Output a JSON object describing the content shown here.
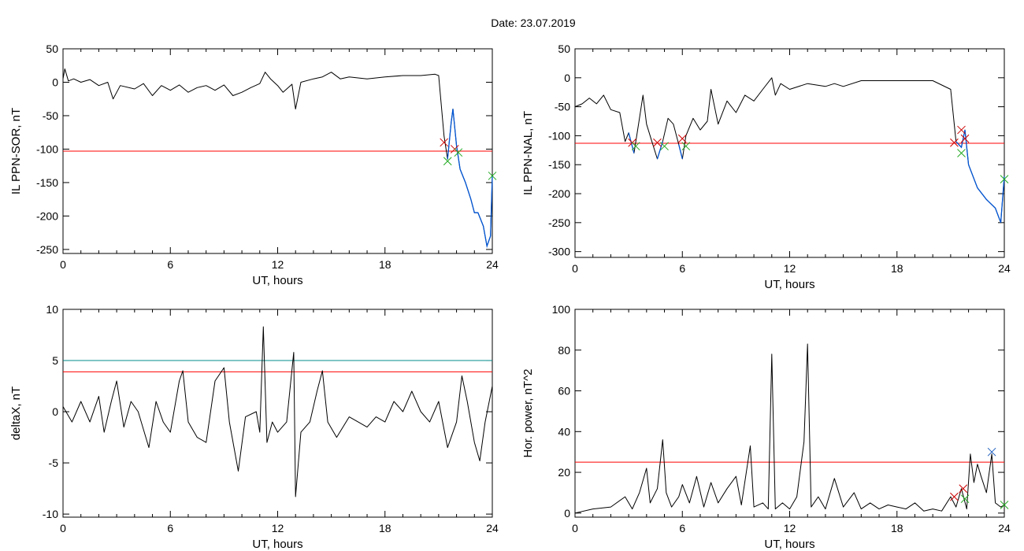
{
  "page_title": "Date:  23.07.2019",
  "colors": {
    "trace": "#000000",
    "threshold": "#ff0000",
    "threshold_upper": "#008b8b",
    "highlight": "#0055d4",
    "marker_cross": "#cc0000",
    "marker_green": "#22aa22",
    "marker_blue": "#1f5fbf"
  },
  "chart_data": [
    {
      "id": "ppn-sor",
      "type": "line",
      "title": "",
      "xlabel": "UT, hours",
      "ylabel": "IL PPN-SOR, nT",
      "xlim": [
        0,
        24
      ],
      "ylim": [
        -256,
        50
      ],
      "xticks": [
        0,
        6,
        12,
        18,
        24
      ],
      "yticks": [
        50,
        0,
        -50,
        -100,
        -150,
        -200,
        -250
      ],
      "threshold": -103,
      "points": [
        [
          0,
          5
        ],
        [
          0.1,
          20
        ],
        [
          0.3,
          2
        ],
        [
          0.6,
          5
        ],
        [
          1.0,
          0
        ],
        [
          1.5,
          4
        ],
        [
          2.0,
          -5
        ],
        [
          2.5,
          0
        ],
        [
          2.8,
          -25
        ],
        [
          3.2,
          -5
        ],
        [
          4.0,
          -10
        ],
        [
          4.5,
          -2
        ],
        [
          5.0,
          -20
        ],
        [
          5.5,
          -5
        ],
        [
          6.0,
          -12
        ],
        [
          6.5,
          -4
        ],
        [
          7.0,
          -15
        ],
        [
          7.5,
          -8
        ],
        [
          8.0,
          -5
        ],
        [
          8.5,
          -12
        ],
        [
          9.0,
          -4
        ],
        [
          9.5,
          -20
        ],
        [
          10.0,
          -15
        ],
        [
          10.5,
          -8
        ],
        [
          11.0,
          -2
        ],
        [
          11.3,
          15
        ],
        [
          11.6,
          5
        ],
        [
          12.0,
          -5
        ],
        [
          12.3,
          -15
        ],
        [
          12.8,
          -3
        ],
        [
          13.0,
          -40
        ],
        [
          13.3,
          0
        ],
        [
          14.0,
          5
        ],
        [
          14.5,
          8
        ],
        [
          15.0,
          15
        ],
        [
          15.5,
          5
        ],
        [
          16.0,
          8
        ],
        [
          17.0,
          5
        ],
        [
          18.0,
          8
        ],
        [
          19.0,
          10
        ],
        [
          20.0,
          10
        ],
        [
          20.8,
          12
        ],
        [
          21.0,
          10
        ],
        [
          21.3,
          -80
        ],
        [
          21.5,
          -115
        ],
        [
          21.7,
          -60
        ],
        [
          21.8,
          -40
        ],
        [
          22.0,
          -95
        ],
        [
          22.2,
          -130
        ],
        [
          22.5,
          -150
        ],
        [
          22.8,
          -175
        ],
        [
          23.0,
          -195
        ],
        [
          23.2,
          -195
        ],
        [
          23.5,
          -215
        ],
        [
          23.7,
          -245
        ],
        [
          23.9,
          -230
        ],
        [
          24,
          -140
        ]
      ],
      "highlight_from": 21.4,
      "cross_markers": [
        [
          21.3,
          -90
        ],
        [
          21.9,
          -100
        ]
      ],
      "green_markers": [
        [
          21.5,
          -118
        ],
        [
          22.1,
          -105
        ],
        [
          24,
          -140
        ]
      ]
    },
    {
      "id": "ppn-nal",
      "type": "line",
      "title": "",
      "xlabel": "UT, hours",
      "ylabel": "IL PPN-NAL, nT",
      "xlim": [
        0,
        24
      ],
      "ylim": [
        -310,
        50
      ],
      "xticks": [
        0,
        6,
        12,
        18,
        24
      ],
      "yticks": [
        50,
        0,
        -50,
        -100,
        -150,
        -200,
        -250,
        -300
      ],
      "threshold": -113,
      "points": [
        [
          0,
          -50
        ],
        [
          0.4,
          -45
        ],
        [
          0.8,
          -35
        ],
        [
          1.2,
          -45
        ],
        [
          1.6,
          -30
        ],
        [
          2.0,
          -55
        ],
        [
          2.5,
          -60
        ],
        [
          2.8,
          -110
        ],
        [
          3.0,
          -95
        ],
        [
          3.3,
          -130
        ],
        [
          3.6,
          -70
        ],
        [
          3.8,
          -30
        ],
        [
          4.0,
          -80
        ],
        [
          4.3,
          -110
        ],
        [
          4.6,
          -140
        ],
        [
          4.9,
          -110
        ],
        [
          5.2,
          -70
        ],
        [
          5.5,
          -80
        ],
        [
          5.8,
          -115
        ],
        [
          6.0,
          -140
        ],
        [
          6.2,
          -100
        ],
        [
          6.6,
          -70
        ],
        [
          7.0,
          -90
        ],
        [
          7.4,
          -75
        ],
        [
          7.6,
          -20
        ],
        [
          8.0,
          -80
        ],
        [
          8.5,
          -40
        ],
        [
          9.0,
          -60
        ],
        [
          9.5,
          -30
        ],
        [
          10.0,
          -40
        ],
        [
          10.5,
          -20
        ],
        [
          11.0,
          0
        ],
        [
          11.2,
          -30
        ],
        [
          11.5,
          -10
        ],
        [
          12.0,
          -20
        ],
        [
          13.0,
          -10
        ],
        [
          14.0,
          -15
        ],
        [
          14.5,
          -10
        ],
        [
          15.0,
          -15
        ],
        [
          16.0,
          -5
        ],
        [
          17.0,
          -5
        ],
        [
          18.0,
          -5
        ],
        [
          19.0,
          -5
        ],
        [
          20.0,
          -5
        ],
        [
          21.0,
          -20
        ],
        [
          21.3,
          -110
        ],
        [
          21.6,
          -120
        ],
        [
          21.8,
          -90
        ],
        [
          22.0,
          -150
        ],
        [
          22.5,
          -190
        ],
        [
          23.0,
          -210
        ],
        [
          23.5,
          -225
        ],
        [
          23.8,
          -250
        ],
        [
          24,
          -170
        ]
      ],
      "highlight_segments": [
        [
          2.95,
          3.45
        ],
        [
          4.35,
          5.0
        ],
        [
          5.75,
          6.15
        ],
        [
          21.3,
          24
        ]
      ],
      "cross_markers": [
        [
          3.2,
          -112
        ],
        [
          4.6,
          -112
        ],
        [
          6.0,
          -105
        ],
        [
          21.2,
          -112
        ],
        [
          21.6,
          -90
        ],
        [
          21.8,
          -105
        ]
      ],
      "green_markers": [
        [
          3.4,
          -118
        ],
        [
          5.0,
          -118
        ],
        [
          6.2,
          -118
        ],
        [
          21.6,
          -130
        ],
        [
          24,
          -175
        ]
      ]
    },
    {
      "id": "deltax",
      "type": "line",
      "title": "",
      "xlabel": "UT, hours",
      "ylabel": "deltaX, nT",
      "xlim": [
        0,
        24
      ],
      "ylim": [
        -10.3,
        10
      ],
      "xticks": [
        0,
        6,
        12,
        18,
        24
      ],
      "yticks": [
        10,
        5,
        0,
        -5,
        -10
      ],
      "threshold": 3.9,
      "threshold_upper": 5.0,
      "points": [
        [
          0,
          0.5
        ],
        [
          0.5,
          -1
        ],
        [
          1.0,
          1
        ],
        [
          1.5,
          -1
        ],
        [
          2.0,
          1.5
        ],
        [
          2.3,
          -2
        ],
        [
          2.7,
          1
        ],
        [
          3.0,
          3
        ],
        [
          3.4,
          -1.5
        ],
        [
          3.8,
          1
        ],
        [
          4.2,
          0
        ],
        [
          4.8,
          -3.5
        ],
        [
          5.2,
          1
        ],
        [
          5.6,
          -1
        ],
        [
          6.0,
          -2
        ],
        [
          6.5,
          3
        ],
        [
          6.7,
          4
        ],
        [
          7.0,
          -1
        ],
        [
          7.5,
          -2.5
        ],
        [
          8.0,
          -3
        ],
        [
          8.5,
          3
        ],
        [
          9.0,
          4.3
        ],
        [
          9.3,
          -1
        ],
        [
          9.8,
          -5.8
        ],
        [
          10.2,
          -0.5
        ],
        [
          10.8,
          0
        ],
        [
          11.0,
          -2
        ],
        [
          11.2,
          8.3
        ],
        [
          11.4,
          -3
        ],
        [
          11.7,
          -1
        ],
        [
          12.0,
          -2
        ],
        [
          12.5,
          -1
        ],
        [
          12.9,
          5.8
        ],
        [
          13.0,
          -8.3
        ],
        [
          13.3,
          -2
        ],
        [
          13.8,
          -1
        ],
        [
          14.2,
          2
        ],
        [
          14.5,
          4
        ],
        [
          14.8,
          -1
        ],
        [
          15.3,
          -2.5
        ],
        [
          16.0,
          -0.5
        ],
        [
          16.5,
          -1
        ],
        [
          17.0,
          -1.5
        ],
        [
          17.5,
          -0.5
        ],
        [
          18.0,
          -1
        ],
        [
          18.5,
          1
        ],
        [
          19.0,
          0
        ],
        [
          19.5,
          2
        ],
        [
          20.0,
          0
        ],
        [
          20.5,
          -1
        ],
        [
          21.0,
          1
        ],
        [
          21.5,
          -3.5
        ],
        [
          22.0,
          -1
        ],
        [
          22.3,
          3.5
        ],
        [
          22.6,
          1
        ],
        [
          23.0,
          -3
        ],
        [
          23.3,
          -4.8
        ],
        [
          23.6,
          -1
        ],
        [
          24,
          2.5
        ]
      ]
    },
    {
      "id": "hor-power",
      "type": "line",
      "title": "",
      "xlabel": "UT, hours",
      "ylabel": "Hor. power, nT^2",
      "xlim": [
        0,
        24
      ],
      "ylim": [
        -2,
        100
      ],
      "xticks": [
        0,
        6,
        12,
        18,
        24
      ],
      "yticks": [
        100,
        80,
        60,
        40,
        20,
        0
      ],
      "threshold": 25,
      "points": [
        [
          0,
          0
        ],
        [
          1.0,
          2
        ],
        [
          2.0,
          3
        ],
        [
          2.8,
          8
        ],
        [
          3.2,
          2
        ],
        [
          3.6,
          10
        ],
        [
          4.0,
          22
        ],
        [
          4.2,
          5
        ],
        [
          4.6,
          12
        ],
        [
          4.9,
          36
        ],
        [
          5.1,
          10
        ],
        [
          5.4,
          3
        ],
        [
          5.8,
          8
        ],
        [
          6.0,
          14
        ],
        [
          6.4,
          5
        ],
        [
          6.8,
          18
        ],
        [
          7.2,
          3
        ],
        [
          7.6,
          15
        ],
        [
          8.0,
          5
        ],
        [
          8.5,
          12
        ],
        [
          9.0,
          18
        ],
        [
          9.3,
          4
        ],
        [
          9.8,
          33
        ],
        [
          10.0,
          3
        ],
        [
          10.5,
          5
        ],
        [
          10.8,
          2
        ],
        [
          11.0,
          78
        ],
        [
          11.2,
          2
        ],
        [
          11.6,
          5
        ],
        [
          12.0,
          2
        ],
        [
          12.4,
          8
        ],
        [
          12.8,
          35
        ],
        [
          13.0,
          83
        ],
        [
          13.2,
          3
        ],
        [
          13.6,
          8
        ],
        [
          14.0,
          2
        ],
        [
          14.5,
          17
        ],
        [
          15.0,
          3
        ],
        [
          15.6,
          10
        ],
        [
          16.0,
          2
        ],
        [
          16.5,
          5
        ],
        [
          17.0,
          2
        ],
        [
          17.5,
          4
        ],
        [
          18.0,
          3
        ],
        [
          18.5,
          2
        ],
        [
          19.0,
          5
        ],
        [
          19.5,
          1
        ],
        [
          20.0,
          2
        ],
        [
          20.5,
          1
        ],
        [
          21.0,
          8
        ],
        [
          21.3,
          3
        ],
        [
          21.6,
          12
        ],
        [
          21.9,
          2
        ],
        [
          22.1,
          29
        ],
        [
          22.3,
          15
        ],
        [
          22.5,
          24
        ],
        [
          22.7,
          18
        ],
        [
          23.0,
          10
        ],
        [
          23.3,
          29
        ],
        [
          23.5,
          5
        ],
        [
          23.8,
          3
        ],
        [
          24,
          4
        ]
      ],
      "cross_markers": [
        [
          21.2,
          8
        ],
        [
          21.7,
          12
        ]
      ],
      "green_markers": [
        [
          21.8,
          7
        ],
        [
          24,
          4
        ]
      ],
      "blue_markers": [
        [
          23.3,
          30
        ]
      ]
    }
  ]
}
